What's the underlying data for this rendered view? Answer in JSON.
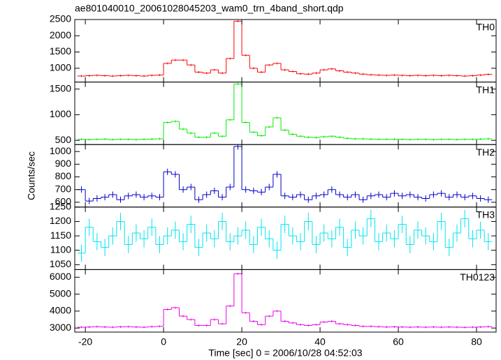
{
  "chart_data": [
    {
      "type": "line",
      "title": "ae801040010_20061028045203_wam0_trn_4band_short.qdp",
      "x": [
        -21,
        -19,
        -17,
        -15,
        -13,
        -11,
        -9,
        -7,
        -5,
        -3,
        -1,
        1,
        3,
        5,
        7,
        9,
        11,
        13,
        15,
        17,
        19,
        21,
        23,
        25,
        27,
        29,
        31,
        33,
        35,
        37,
        39,
        41,
        43,
        45,
        47,
        49,
        51,
        53,
        55,
        57,
        59,
        61,
        63,
        65,
        67,
        69,
        71,
        73,
        75,
        77,
        79,
        81,
        83
      ],
      "xlim": [
        -22.7,
        85
      ],
      "xticks": [
        -20,
        0,
        20,
        40,
        60,
        80
      ],
      "ylim": [
        575,
        2500
      ],
      "yticks": [
        1000,
        1500,
        2000,
        2500
      ],
      "series": [
        {
          "name": "TH0",
          "color": "#ff0000",
          "yerr": 30,
          "values": [
            760,
            770,
            780,
            770,
            760,
            770,
            780,
            770,
            760,
            780,
            790,
            1150,
            1250,
            1250,
            1100,
            880,
            850,
            950,
            850,
            1300,
            2450,
            1400,
            1000,
            880,
            1100,
            1150,
            950,
            900,
            830,
            820,
            850,
            950,
            980,
            920,
            880,
            850,
            820,
            800,
            790,
            780,
            790,
            780,
            770,
            780,
            770,
            780,
            770,
            780,
            770,
            760,
            770,
            790,
            810
          ]
        }
      ]
    },
    {
      "type": "line",
      "x": [
        -21,
        -19,
        -17,
        -15,
        -13,
        -11,
        -9,
        -7,
        -5,
        -3,
        -1,
        1,
        3,
        5,
        7,
        9,
        11,
        13,
        15,
        17,
        19,
        21,
        23,
        25,
        27,
        29,
        31,
        33,
        35,
        37,
        39,
        41,
        43,
        45,
        47,
        49,
        51,
        53,
        55,
        57,
        59,
        61,
        63,
        65,
        67,
        69,
        71,
        73,
        75,
        77,
        79,
        81,
        83
      ],
      "xlim": [
        -22.7,
        85
      ],
      "xticks": [
        -20,
        0,
        20,
        40,
        60,
        80
      ],
      "ylim": [
        418,
        1637
      ],
      "yticks": [
        500,
        1000,
        1500
      ],
      "series": [
        {
          "name": "TH1",
          "color": "#00ee00",
          "yerr": 20,
          "values": [
            520,
            515,
            520,
            525,
            515,
            520,
            520,
            515,
            520,
            525,
            530,
            850,
            870,
            720,
            640,
            560,
            560,
            640,
            580,
            900,
            1600,
            850,
            660,
            590,
            760,
            940,
            700,
            620,
            580,
            560,
            555,
            570,
            580,
            560,
            540,
            530,
            530,
            525,
            520,
            520,
            520,
            520,
            515,
            520,
            520,
            515,
            520,
            520,
            515,
            520,
            520,
            525,
            530
          ]
        }
      ]
    },
    {
      "type": "line",
      "ylabel": "Counts/sec",
      "x": [
        -21,
        -19,
        -17,
        -15,
        -13,
        -11,
        -9,
        -7,
        -5,
        -3,
        -1,
        1,
        3,
        5,
        7,
        9,
        11,
        13,
        15,
        17,
        19,
        21,
        23,
        25,
        27,
        29,
        31,
        33,
        35,
        37,
        39,
        41,
        43,
        45,
        47,
        49,
        51,
        53,
        55,
        57,
        59,
        61,
        63,
        65,
        67,
        69,
        71,
        73,
        75,
        77,
        79,
        81,
        83
      ],
      "xlim": [
        -22.7,
        85
      ],
      "xticks": [
        -20,
        0,
        20,
        40,
        60,
        80
      ],
      "ylim": [
        562,
        1055
      ],
      "yticks": [
        600,
        700,
        800,
        900,
        1000
      ],
      "series": [
        {
          "name": "TH2",
          "color": "#0000cc",
          "yerr": 25,
          "values": [
            700,
            610,
            630,
            640,
            660,
            620,
            650,
            660,
            640,
            650,
            640,
            840,
            820,
            700,
            720,
            620,
            660,
            690,
            640,
            720,
            1040,
            700,
            690,
            680,
            720,
            820,
            650,
            640,
            660,
            620,
            650,
            660,
            700,
            660,
            640,
            660,
            620,
            650,
            660,
            640,
            670,
            650,
            660,
            640,
            630,
            660,
            670,
            640,
            660,
            640,
            650,
            630,
            620
          ]
        }
      ]
    },
    {
      "type": "line",
      "x": [
        -21,
        -19,
        -17,
        -15,
        -13,
        -11,
        -9,
        -7,
        -5,
        -3,
        -1,
        1,
        3,
        5,
        7,
        9,
        11,
        13,
        15,
        17,
        19,
        21,
        23,
        25,
        27,
        29,
        31,
        33,
        35,
        37,
        39,
        41,
        43,
        45,
        47,
        49,
        51,
        53,
        55,
        57,
        59,
        61,
        63,
        65,
        67,
        69,
        71,
        73,
        75,
        77,
        79,
        81,
        83
      ],
      "xlim": [
        -22.7,
        85
      ],
      "xticks": [
        -20,
        0,
        20,
        40,
        60,
        80
      ],
      "ylim": [
        1033,
        1250
      ],
      "yticks": [
        1050,
        1100,
        1150,
        1200,
        1250
      ],
      "series": [
        {
          "name": "TH3",
          "color": "#00e5ee",
          "yerr": 30,
          "values": [
            1090,
            1180,
            1130,
            1110,
            1150,
            1200,
            1120,
            1160,
            1140,
            1180,
            1120,
            1150,
            1170,
            1130,
            1190,
            1110,
            1160,
            1140,
            1200,
            1130,
            1150,
            1170,
            1120,
            1180,
            1140,
            1100,
            1190,
            1150,
            1130,
            1200,
            1120,
            1160,
            1140,
            1180,
            1110,
            1170,
            1150,
            1210,
            1130,
            1160,
            1140,
            1190,
            1120,
            1170,
            1150,
            1130,
            1200,
            1110,
            1160,
            1210,
            1140,
            1170,
            1130
          ]
        }
      ]
    },
    {
      "type": "line",
      "xlabel": "Time [sec] 0 = 2006/10/28 04:52:03",
      "x": [
        -21,
        -19,
        -17,
        -15,
        -13,
        -11,
        -9,
        -7,
        -5,
        -3,
        -1,
        1,
        3,
        5,
        7,
        9,
        11,
        13,
        15,
        17,
        19,
        21,
        23,
        25,
        27,
        29,
        31,
        33,
        35,
        37,
        39,
        41,
        43,
        45,
        47,
        49,
        51,
        53,
        55,
        57,
        59,
        61,
        63,
        65,
        67,
        69,
        71,
        73,
        75,
        77,
        79,
        81,
        83
      ],
      "xlim": [
        -22.7,
        85
      ],
      "xticks": [
        -20,
        0,
        20,
        40,
        60,
        80
      ],
      "ylim": [
        2760,
        6450
      ],
      "yticks": [
        3000,
        4000,
        5000,
        6000
      ],
      "series": [
        {
          "name": "TH0123",
          "color": "#ee00ee",
          "yerr": 60,
          "values": [
            3050,
            3060,
            3080,
            3060,
            3050,
            3070,
            3080,
            3060,
            3050,
            3080,
            3100,
            4100,
            4200,
            3700,
            3500,
            3150,
            3150,
            3500,
            3250,
            4300,
            6200,
            3900,
            3400,
            3200,
            3700,
            4000,
            3400,
            3300,
            3200,
            3150,
            3200,
            3350,
            3400,
            3250,
            3200,
            3150,
            3100,
            3100,
            3080,
            3060,
            3070,
            3060,
            3050,
            3060,
            3050,
            3060,
            3050,
            3060,
            3050,
            3040,
            3050,
            3060,
            3080
          ]
        }
      ]
    }
  ]
}
